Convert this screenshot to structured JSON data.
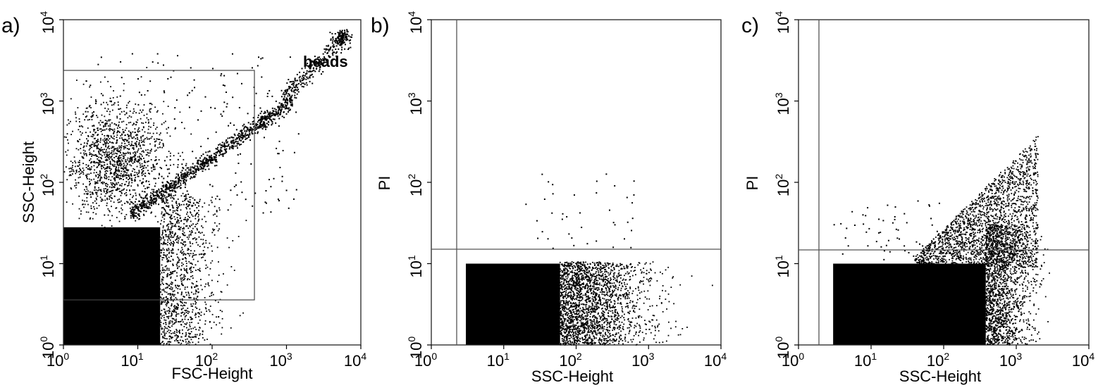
{
  "figure": {
    "panels": [
      {
        "id": "a",
        "label": "a)",
        "xlabel": "FSC-Height",
        "ylabel": "SSC-Height",
        "annotation": "beads"
      },
      {
        "id": "b",
        "label": "b)",
        "xlabel": "SSC-Height",
        "ylabel": "PI"
      },
      {
        "id": "c",
        "label": "c)",
        "xlabel": "SSC-Height",
        "ylabel": "PI"
      }
    ],
    "tick_base": "10",
    "tick_exponents": [
      "0",
      "1",
      "2",
      "3",
      "4"
    ]
  },
  "chart_data": [
    {
      "type": "scatter",
      "panel": "a",
      "title": "",
      "xlabel": "FSC-Height",
      "ylabel": "SSC-Height",
      "xscale": "log",
      "yscale": "log",
      "xlim": [
        1,
        10000
      ],
      "ylim": [
        1,
        10000
      ],
      "xticks": [
        1,
        10,
        100,
        1000,
        10000
      ],
      "yticks": [
        1,
        10,
        100,
        1000,
        10000
      ],
      "gate": {
        "type": "rectangle",
        "x": [
          1,
          350
        ],
        "y": [
          3.2,
          2000
        ]
      },
      "annotations": [
        {
          "text": "beads",
          "x": 3000,
          "y": 1700
        }
      ],
      "populations": [
        {
          "name": "dense-core",
          "x_range": [
            1,
            22
          ],
          "y_range": [
            1,
            30
          ]
        },
        {
          "name": "upper-cloud",
          "x_center": 5,
          "y_center": 200
        },
        {
          "name": "right-tail",
          "x_range": [
            20,
            150
          ],
          "y_range": [
            1,
            60
          ]
        },
        {
          "name": "diagonal-arm",
          "from": [
            8,
            40
          ],
          "to": [
            1200,
            1000
          ]
        },
        {
          "name": "beads-cluster",
          "x_center": 5000,
          "y_center": 5500
        }
      ],
      "grid": false,
      "legend": "none"
    },
    {
      "type": "scatter",
      "panel": "b",
      "title": "",
      "xlabel": "SSC-Height",
      "ylabel": "PI",
      "xscale": "log",
      "yscale": "log",
      "xlim": [
        1,
        10000
      ],
      "ylim": [
        1,
        10000
      ],
      "xticks": [
        1,
        10,
        100,
        1000,
        10000
      ],
      "yticks": [
        1,
        10,
        100,
        1000,
        10000
      ],
      "gate": {
        "type": "quadrant",
        "x": 2.6,
        "y": 15
      },
      "populations": [
        {
          "name": "dense-block",
          "x_range": [
            3,
            60
          ],
          "y_range": [
            1,
            10
          ]
        },
        {
          "name": "scatter-tail",
          "x_range": [
            60,
            2000
          ],
          "y_range": [
            1,
            10
          ]
        },
        {
          "name": "sparse-upper",
          "x_range": [
            20,
            700
          ],
          "y_range": [
            15,
            130
          ]
        }
      ],
      "grid": false,
      "legend": "none"
    },
    {
      "type": "scatter",
      "panel": "c",
      "title": "",
      "xlabel": "SSC-Height",
      "ylabel": "PI",
      "xscale": "log",
      "yscale": "log",
      "xlim": [
        1,
        10000
      ],
      "ylim": [
        1,
        10000
      ],
      "xticks": [
        1,
        10,
        100,
        1000,
        10000
      ],
      "yticks": [
        1,
        10,
        100,
        1000,
        10000
      ],
      "gate": {
        "type": "quadrant",
        "x": 2.4,
        "y": 14
      },
      "populations": [
        {
          "name": "dense-block",
          "x_range": [
            3,
            400
          ],
          "y_range": [
            1,
            10
          ]
        },
        {
          "name": "right-edge",
          "x_range": [
            300,
            2000
          ],
          "y_range": [
            1,
            30
          ]
        },
        {
          "name": "upper-plume",
          "x_range": [
            50,
            1800
          ],
          "y_range": [
            15,
            380
          ]
        }
      ],
      "grid": false,
      "legend": "none"
    }
  ]
}
